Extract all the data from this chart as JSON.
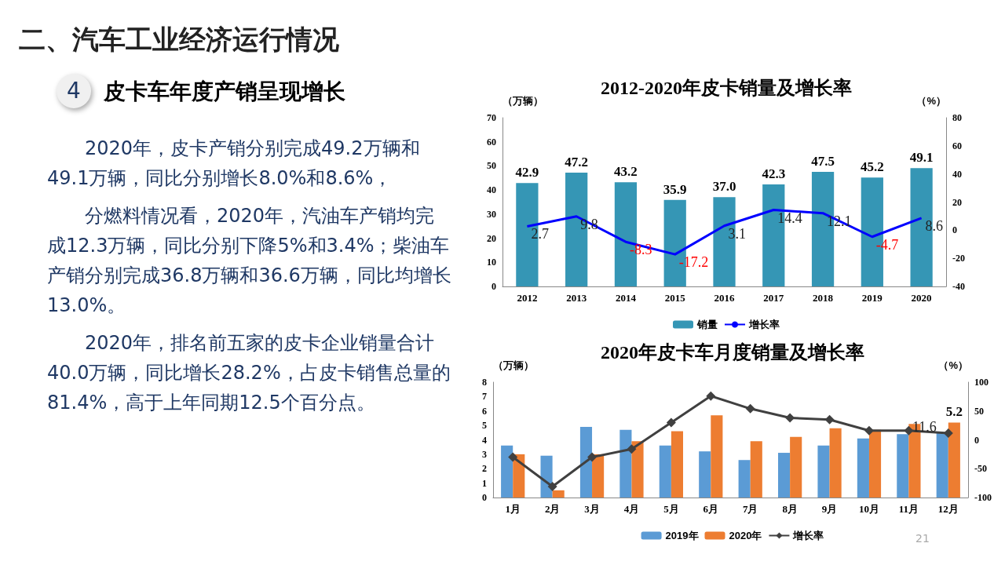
{
  "chart_data": [
    {
      "type": "other",
      "title": "二、汽车工业经济运行情况",
      "annotations": [
        "4",
        "皮卡车年度产销呈现增长",
        "2020年，皮卡产销分别完成49.2万辆和49.1万辆，同比分别增长8.0%和8.6%，",
        "分燃料情况看，2020年，汽油车产销均完成12.3万辆，同比分别下降5%和3.4%；柴油车产销分别完成36.8万辆和36.6万辆，同比均增长13.0%。",
        "2020年，排名前五家的皮卡企业销量合计40.0万辆，同比增长28.2%，占皮卡销售总量的81.4%，高于上年同期12.5个百分点。",
        "21"
      ]
    },
    {
      "type": "bar",
      "title": "2012-2020年皮卡销量及增长率",
      "ylabel": "（万辆）",
      "y2label": "（%）",
      "categories": [
        "2012",
        "2013",
        "2014",
        "2015",
        "2016",
        "2017",
        "2018",
        "2019",
        "2020"
      ],
      "series": [
        {
          "name": "销量",
          "color": "#3596b5",
          "values": [
            42.9,
            47.2,
            43.2,
            35.9,
            37.0,
            42.3,
            47.5,
            45.2,
            49.1
          ],
          "value_labels": [
            "42.9",
            "47.2",
            "43.2",
            "35.9",
            "37.0",
            "42.3",
            "47.5",
            "45.2",
            "49.1"
          ]
        },
        {
          "name": "增长率",
          "type": "line",
          "axis": "y2",
          "color": "#0000ff",
          "values": [
            2.7,
            9.8,
            -8.3,
            -17.2,
            3.1,
            14.4,
            12.1,
            -4.7,
            8.6
          ],
          "value_labels": [
            "2.7",
            "9.8",
            "-8.3",
            "-17.2",
            "3.1",
            "14.4",
            "12.1",
            "-4.7",
            "8.6"
          ]
        }
      ],
      "ylim": [
        0,
        70
      ],
      "yticks": [
        0,
        10,
        20,
        30,
        40,
        50,
        60,
        70
      ],
      "y2lim": [
        -40,
        80
      ],
      "y2ticks": [
        -40,
        -20,
        0,
        20,
        40,
        60,
        80
      ],
      "legend": "bottom",
      "grid": false,
      "marker": "none"
    },
    {
      "type": "bar",
      "title": "2020年皮卡车月度销量及增长率",
      "ylabel": "（万辆）",
      "y2label": "（%）",
      "categories": [
        "1月",
        "2月",
        "3月",
        "4月",
        "5月",
        "6月",
        "7月",
        "8月",
        "9月",
        "10月",
        "11月",
        "12月"
      ],
      "series": [
        {
          "name": "2019年",
          "color": "#5b9bd5",
          "values": [
            3.6,
            2.9,
            4.9,
            4.7,
            3.6,
            3.2,
            2.6,
            3.1,
            3.6,
            4.1,
            4.4,
            4.5
          ]
        },
        {
          "name": "2020年",
          "color": "#ed7d31",
          "values": [
            3.0,
            0.5,
            3.0,
            3.9,
            4.6,
            5.7,
            3.9,
            4.2,
            4.8,
            4.7,
            5.1,
            5.2
          ],
          "value_labels": [
            null,
            null,
            null,
            null,
            null,
            null,
            null,
            null,
            null,
            null,
            null,
            "5.2"
          ]
        },
        {
          "name": "增长率",
          "type": "line",
          "axis": "y2",
          "color": "#404040",
          "marker": "diamond",
          "values": [
            -30,
            -81,
            -30,
            -16,
            30,
            76,
            54,
            38,
            35,
            16,
            16,
            11.6
          ],
          "value_labels": [
            null,
            null,
            null,
            null,
            null,
            null,
            null,
            null,
            null,
            null,
            null,
            "11.6"
          ]
        }
      ],
      "ylim": [
        0,
        8
      ],
      "yticks": [
        0,
        1,
        2,
        3,
        4,
        5,
        6,
        7,
        8
      ],
      "y2lim": [
        -100,
        100
      ],
      "y2ticks": [
        -100,
        -50,
        0,
        50,
        100
      ],
      "legend": "bottom",
      "grid": false
    }
  ]
}
